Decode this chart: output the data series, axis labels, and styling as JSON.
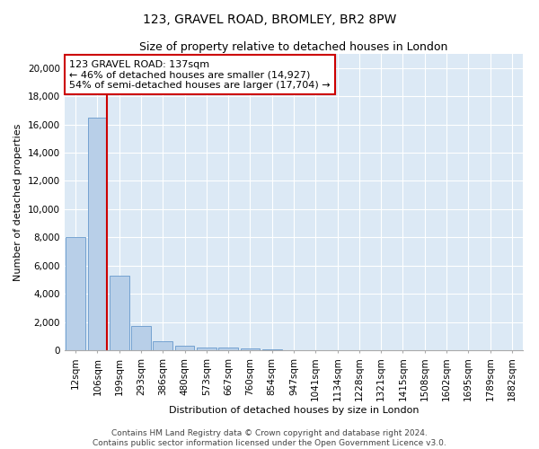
{
  "title": "123, GRAVEL ROAD, BROMLEY, BR2 8PW",
  "subtitle": "Size of property relative to detached houses in London",
  "xlabel": "Distribution of detached houses by size in London",
  "ylabel": "Number of detached properties",
  "categories": [
    "12sqm",
    "106sqm",
    "199sqm",
    "293sqm",
    "386sqm",
    "480sqm",
    "573sqm",
    "667sqm",
    "760sqm",
    "854sqm",
    "947sqm",
    "1041sqm",
    "1134sqm",
    "1228sqm",
    "1321sqm",
    "1415sqm",
    "1508sqm",
    "1602sqm",
    "1695sqm",
    "1789sqm",
    "1882sqm"
  ],
  "values": [
    8050,
    16500,
    5300,
    1750,
    650,
    300,
    200,
    175,
    150,
    60,
    30,
    20,
    15,
    10,
    8,
    6,
    4,
    3,
    2,
    2,
    1
  ],
  "bar_color": "#b8cfe8",
  "bar_edge_color": "#6699cc",
  "vline_x_index": 1.42,
  "vline_color": "#cc0000",
  "annotation_text": "123 GRAVEL ROAD: 137sqm\n← 46% of detached houses are smaller (14,927)\n54% of semi-detached houses are larger (17,704) →",
  "annotation_box_color": "white",
  "annotation_box_edge_color": "#cc0000",
  "ylim": [
    0,
    21000
  ],
  "yticks": [
    0,
    2000,
    4000,
    6000,
    8000,
    10000,
    12000,
    14000,
    16000,
    18000,
    20000
  ],
  "bg_color": "#dce9f5",
  "footer": "Contains HM Land Registry data © Crown copyright and database right 2024.\nContains public sector information licensed under the Open Government Licence v3.0.",
  "title_fontsize": 10,
  "subtitle_fontsize": 9,
  "axis_label_fontsize": 8,
  "tick_fontsize": 7.5,
  "annotation_fontsize": 8,
  "footer_fontsize": 6.5
}
